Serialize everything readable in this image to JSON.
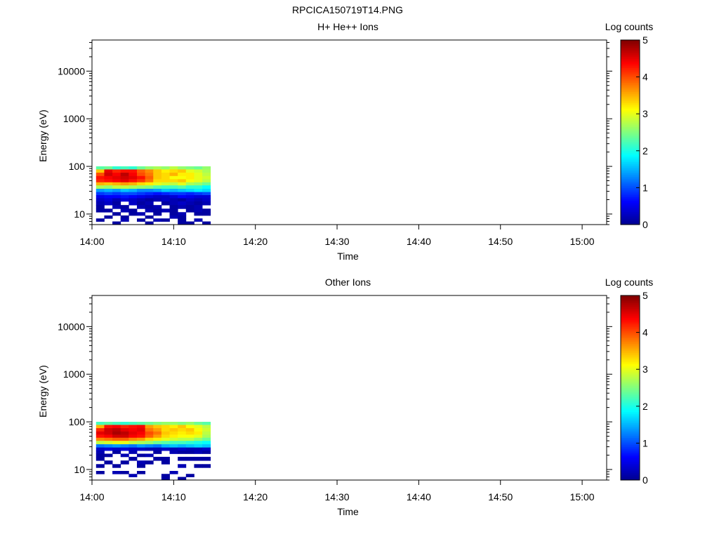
{
  "page_title": "RPCICA150719T14.PNG",
  "colormap_stops": [
    "#00008f",
    "#0000ff",
    "#0080ff",
    "#00ffff",
    "#80ff80",
    "#ffff00",
    "#ff8000",
    "#ff0000",
    "#800000"
  ],
  "chart_data": [
    {
      "type": "heatmap",
      "title": "H+ He++ Ions",
      "xlabel": "Time",
      "ylabel": "Energy (eV)",
      "x_ticks": [
        "14:00",
        "14:10",
        "14:20",
        "14:30",
        "14:40",
        "14:50",
        "15:00"
      ],
      "xlim": [
        "14:00",
        "15:03"
      ],
      "y_scale": "log",
      "ylim": [
        6,
        45000
      ],
      "y_ticks": [
        "10",
        "100",
        "1000",
        "10000"
      ],
      "colorbar": {
        "label": "Log counts",
        "range": [
          0,
          5
        ],
        "ticks": [
          "0",
          "1",
          "2",
          "3",
          "4",
          "5"
        ]
      },
      "time_bins": [
        "14:01",
        "14:02",
        "14:03",
        "14:04",
        "14:05",
        "14:06",
        "14:07",
        "14:08",
        "14:09",
        "14:10",
        "14:11",
        "14:12",
        "14:13",
        "14:14"
      ],
      "energy_bins_eV": [
        93,
        80,
        68,
        58,
        50,
        43,
        37,
        31,
        27,
        23,
        20,
        17,
        14,
        12,
        10,
        8.7,
        7.5,
        6.5
      ],
      "values": [
        [
          2.3,
          2.4,
          2.1,
          2.2,
          2.1,
          2.4,
          2.6,
          2.7,
          2.6,
          2.8,
          2.6,
          2.5,
          2.4,
          2.6
        ],
        [
          3.4,
          4.5,
          4.2,
          4.3,
          4.3,
          3.9,
          3.7,
          3.4,
          3.2,
          3.3,
          3.4,
          3.0,
          2.9,
          2.7
        ],
        [
          4.0,
          4.6,
          4.4,
          4.7,
          4.4,
          4.0,
          3.8,
          3.4,
          3.3,
          3.5,
          3.2,
          3.2,
          3.0,
          2.8
        ],
        [
          4.3,
          4.4,
          4.5,
          4.6,
          4.5,
          4.3,
          3.9,
          3.4,
          3.3,
          3.1,
          3.1,
          3.2,
          3.0,
          2.9
        ],
        [
          4.2,
          4.3,
          4.4,
          4.5,
          4.3,
          4.1,
          3.8,
          3.3,
          3.3,
          3.3,
          3.4,
          3.1,
          3.0,
          2.8
        ],
        [
          3.5,
          3.4,
          3.5,
          3.6,
          3.5,
          3.3,
          3.2,
          3.0,
          2.9,
          2.8,
          3.0,
          2.7,
          2.6,
          2.4
        ],
        [
          2.7,
          2.6,
          2.8,
          2.8,
          2.7,
          2.6,
          2.5,
          2.3,
          2.2,
          2.2,
          2.3,
          2.1,
          2.1,
          1.9
        ],
        [
          1.4,
          1.5,
          1.4,
          1.6,
          1.5,
          1.3,
          1.3,
          1.4,
          1.6,
          1.5,
          1.6,
          1.7,
          1.8,
          1.7
        ],
        [
          0.9,
          1.0,
          0.9,
          1.0,
          1.0,
          0.9,
          0.8,
          0.7,
          0.8,
          0.9,
          0.9,
          0.8,
          0.9,
          1.0
        ],
        [
          0.5,
          0.6,
          0.6,
          0.7,
          0.6,
          0.5,
          0.4,
          0.3,
          0.3,
          0.4,
          0.6,
          0.5,
          0.4,
          0.4
        ],
        [
          0.3,
          0.4,
          0.2,
          0.4,
          0.3,
          0.2,
          0.1,
          0.2,
          0.3,
          0.2,
          0.1,
          0.3,
          0.2,
          0.3
        ],
        [
          0.2,
          0.3,
          0.1,
          null,
          0.3,
          0.1,
          0.2,
          null,
          0.1,
          0.2,
          0.3,
          0.2,
          0.1,
          0.2
        ],
        [
          0.1,
          null,
          0.2,
          0.1,
          null,
          0.2,
          0.1,
          0.2,
          null,
          0.1,
          0.2,
          0.1,
          0.2,
          null
        ],
        [
          0.1,
          0.1,
          null,
          0.2,
          0.1,
          null,
          0.2,
          0.1,
          0.2,
          0.1,
          null,
          0.1,
          0.2,
          0.1
        ],
        [
          null,
          null,
          0.1,
          null,
          0.1,
          0.2,
          null,
          0.1,
          null,
          0.1,
          0.2,
          null,
          0.1,
          0.1
        ],
        [
          null,
          0.1,
          null,
          0.1,
          null,
          null,
          0.1,
          null,
          null,
          0.2,
          0.1,
          null,
          null,
          null
        ],
        [
          0.1,
          null,
          null,
          0.2,
          null,
          0.1,
          null,
          0.2,
          0.1,
          null,
          0.1,
          null,
          0.2,
          null
        ],
        [
          null,
          null,
          0.1,
          null,
          null,
          null,
          0.1,
          null,
          null,
          null,
          0.1,
          0.1,
          null,
          0.1
        ]
      ]
    },
    {
      "type": "heatmap",
      "title": "Other Ions",
      "xlabel": "Time",
      "ylabel": "Energy (eV)",
      "x_ticks": [
        "14:00",
        "14:10",
        "14:20",
        "14:30",
        "14:40",
        "14:50",
        "15:00"
      ],
      "xlim": [
        "14:00",
        "15:03"
      ],
      "y_scale": "log",
      "ylim": [
        6,
        45000
      ],
      "y_ticks": [
        "10",
        "100",
        "1000",
        "10000"
      ],
      "colorbar": {
        "label": "Log counts",
        "range": [
          0,
          5
        ],
        "ticks": [
          "0",
          "1",
          "2",
          "3",
          "4",
          "5"
        ]
      },
      "time_bins": [
        "14:01",
        "14:02",
        "14:03",
        "14:04",
        "14:05",
        "14:06",
        "14:07",
        "14:08",
        "14:09",
        "14:10",
        "14:11",
        "14:12",
        "14:13",
        "14:14"
      ],
      "energy_bins_eV": [
        93,
        80,
        68,
        58,
        50,
        43,
        37,
        31,
        27,
        23,
        20,
        17,
        14,
        12,
        10,
        8.7,
        7.5,
        6.5
      ],
      "values": [
        [
          2.2,
          2.3,
          2.2,
          2.1,
          2.2,
          2.3,
          2.4,
          2.5,
          2.6,
          2.6,
          2.5,
          2.6,
          2.4,
          2.3
        ],
        [
          3.5,
          4.3,
          4.4,
          4.2,
          4.3,
          4.4,
          3.6,
          3.4,
          3.3,
          3.2,
          3.4,
          3.1,
          3.0,
          2.8
        ],
        [
          4.2,
          4.6,
          4.7,
          4.5,
          4.4,
          4.5,
          3.8,
          3.6,
          3.3,
          3.4,
          3.3,
          3.4,
          3.1,
          2.9
        ],
        [
          4.5,
          4.6,
          4.8,
          4.7,
          4.5,
          4.4,
          4.0,
          3.8,
          3.4,
          3.3,
          3.2,
          3.3,
          3.2,
          2.8
        ],
        [
          4.3,
          4.4,
          4.6,
          4.6,
          4.4,
          4.3,
          3.9,
          3.6,
          3.3,
          3.2,
          3.1,
          3.1,
          3.0,
          2.7
        ],
        [
          3.7,
          3.8,
          3.9,
          3.9,
          3.7,
          3.6,
          3.3,
          3.2,
          3.0,
          2.9,
          2.8,
          2.8,
          2.6,
          2.4
        ],
        [
          2.8,
          2.9,
          3.0,
          3.0,
          2.8,
          2.7,
          2.6,
          2.4,
          2.3,
          2.2,
          2.2,
          2.1,
          2.0,
          1.9
        ],
        [
          1.2,
          1.3,
          1.4,
          1.3,
          1.2,
          1.4,
          1.3,
          1.2,
          1.5,
          1.6,
          1.5,
          1.6,
          1.7,
          1.6
        ],
        [
          0.3,
          0.4,
          0.3,
          0.4,
          0.3,
          0.3,
          0.2,
          0.2,
          0.3,
          0.2,
          0.3,
          0.2,
          0.2,
          0.3
        ],
        [
          0.2,
          null,
          0.1,
          null,
          0.2,
          null,
          null,
          0.1,
          null,
          0.2,
          0.1,
          0.1,
          0.2,
          0.1
        ],
        [
          0.1,
          0.1,
          null,
          0.2,
          null,
          0.1,
          0.2,
          null,
          null,
          null,
          null,
          null,
          null,
          null
        ],
        [
          0.1,
          null,
          null,
          null,
          0.1,
          null,
          null,
          0.1,
          0.1,
          null,
          0.1,
          0.1,
          0.1,
          0.1
        ],
        [
          null,
          0.1,
          null,
          0.1,
          null,
          0.2,
          0.1,
          null,
          0.1,
          null,
          null,
          null,
          null,
          null
        ],
        [
          0.1,
          null,
          0.1,
          null,
          null,
          0.1,
          null,
          null,
          null,
          null,
          0.2,
          null,
          0.1,
          0.1
        ],
        [
          null,
          null,
          null,
          null,
          null,
          null,
          null,
          null,
          null,
          null,
          null,
          null,
          null,
          null
        ],
        [
          0.1,
          null,
          0.2,
          0.1,
          null,
          0.1,
          null,
          null,
          null,
          0.2,
          null,
          null,
          null,
          null
        ],
        [
          null,
          null,
          null,
          null,
          0.2,
          null,
          null,
          null,
          0.1,
          null,
          null,
          0.1,
          null,
          null
        ],
        [
          null,
          null,
          null,
          null,
          null,
          null,
          null,
          null,
          0.1,
          null,
          0.1,
          null,
          null,
          null
        ]
      ]
    }
  ]
}
